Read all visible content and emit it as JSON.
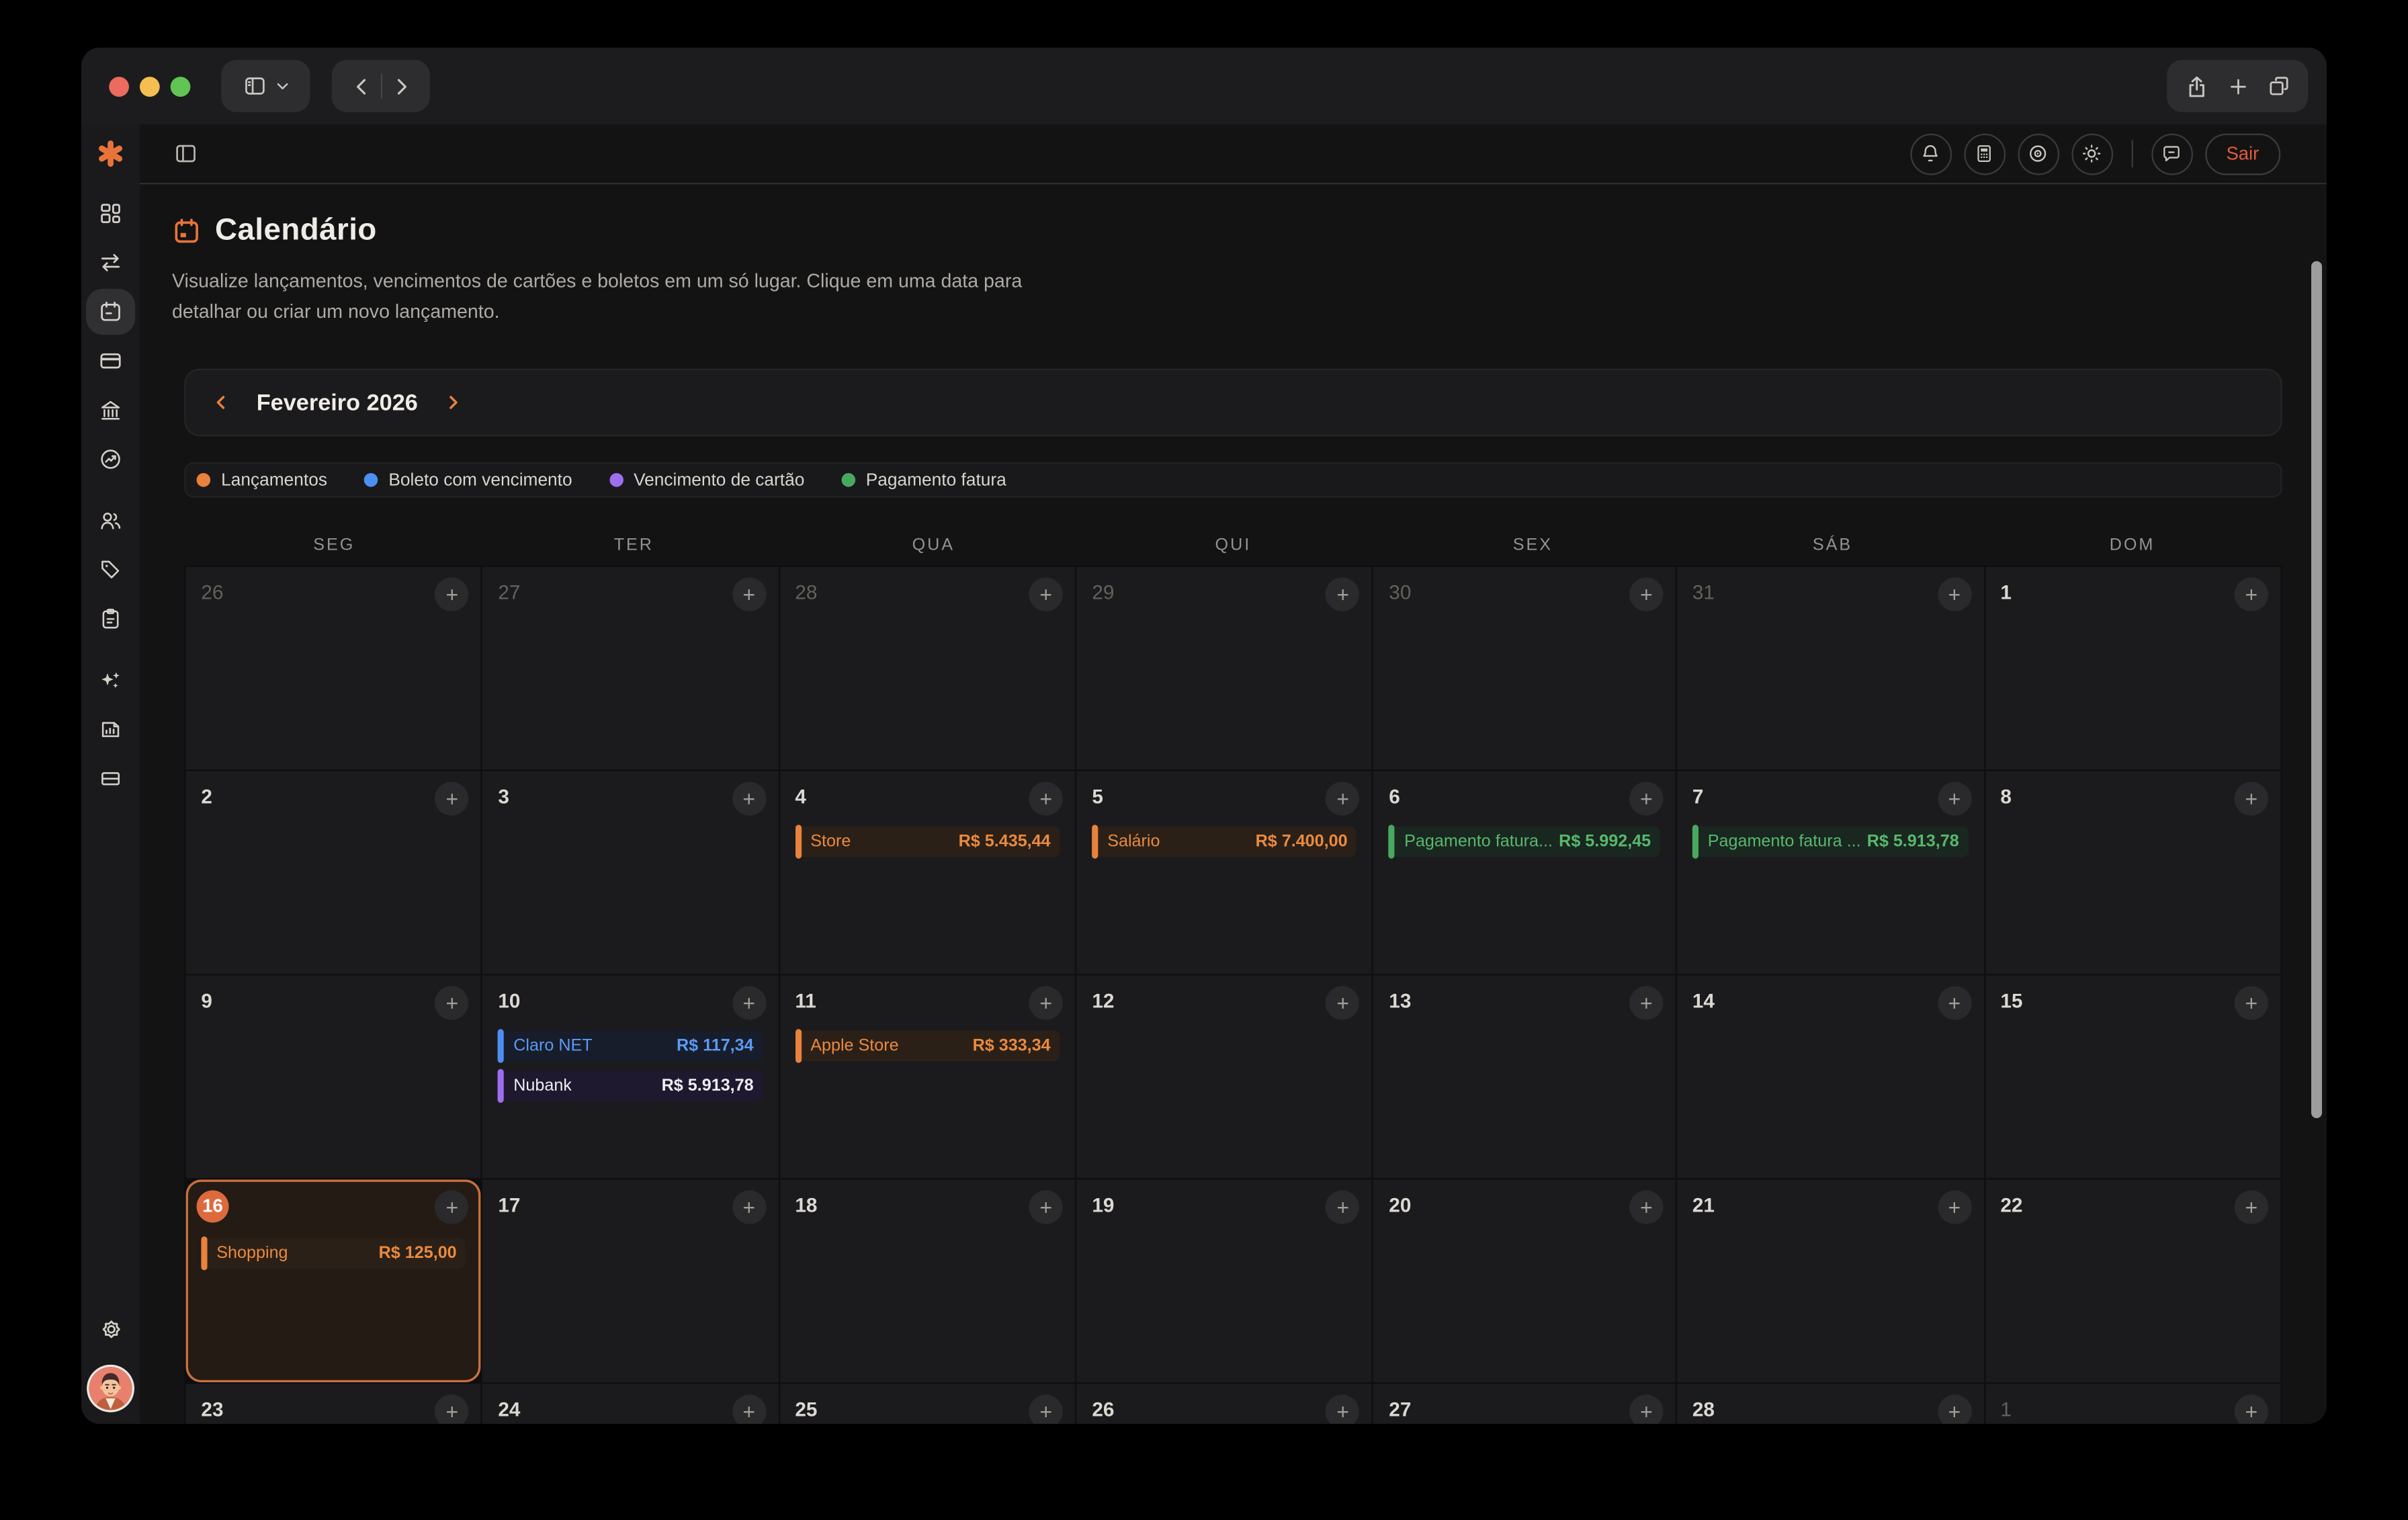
{
  "browser_toolbar": {
    "traffic_lights": [
      "close",
      "minimize",
      "zoom"
    ],
    "icons": [
      "sidebar-toggle-icon",
      "chevron-down-icon",
      "back-icon",
      "forward-icon",
      "share-icon",
      "new-tab-icon",
      "tabs-icon"
    ]
  },
  "sidebar": {
    "logo_icon": "asterisk-logo",
    "items": [
      "dashboard-icon",
      "transfers-icon",
      "calendar-icon",
      "credit-card-icon",
      "bank-icon",
      "trending-icon",
      "users-icon",
      "tag-icon",
      "clipboard-icon",
      "sparkles-icon",
      "report-icon",
      "panels-icon"
    ],
    "active_item": "calendar-icon",
    "bottom": [
      "gear-icon",
      "avatar"
    ]
  },
  "app_topbar": {
    "left_icon": "panel-toggle-icon",
    "icons": [
      "bell-icon",
      "calculator-icon",
      "eye-icon",
      "sun-icon",
      "chat-icon"
    ],
    "logout_label": "Sair"
  },
  "page_header": {
    "title": "Calendário",
    "title_icon": "calendar-icon",
    "subtitle_line1": "Visualize lançamentos, vencimentos de cartões e boletos em um só lugar. Clique em uma data para",
    "subtitle_line2": "detalhar ou criar um novo lançamento."
  },
  "month_nav": {
    "label": "Fevereiro 2026"
  },
  "legend": {
    "items": [
      {
        "label": "Lançamentos",
        "color": "#e8823c"
      },
      {
        "label": "Boleto com vencimento",
        "color": "#4c8ff0"
      },
      {
        "label": "Vencimento de cartão",
        "color": "#9e6ef0"
      },
      {
        "label": "Pagamento fatura",
        "color": "#49a85f"
      }
    ]
  },
  "calendar": {
    "weekdays": [
      "SEG",
      "TER",
      "QUA",
      "QUI",
      "SEX",
      "SÁB",
      "DOM"
    ],
    "weeks": [
      [
        {
          "day": "26",
          "muted": true
        },
        {
          "day": "27",
          "muted": true
        },
        {
          "day": "28",
          "muted": true
        },
        {
          "day": "29",
          "muted": true
        },
        {
          "day": "30",
          "muted": true
        },
        {
          "day": "31",
          "muted": true
        },
        {
          "day": "1"
        }
      ],
      [
        {
          "day": "2"
        },
        {
          "day": "3"
        },
        {
          "day": "4",
          "events": [
            {
              "label": "Store",
              "amount": "R$ 5.435,44",
              "type": "lancamento"
            }
          ]
        },
        {
          "day": "5",
          "events": [
            {
              "label": "Salário",
              "amount": "R$ 7.400,00",
              "type": "lancamento"
            }
          ]
        },
        {
          "day": "6",
          "events": [
            {
              "label": "Pagamento fatura...",
              "amount": "R$ 5.992,45",
              "type": "fatura"
            }
          ]
        },
        {
          "day": "7",
          "events": [
            {
              "label": "Pagamento fatura ...",
              "amount": "R$ 5.913,78",
              "type": "fatura"
            }
          ]
        },
        {
          "day": "8"
        }
      ],
      [
        {
          "day": "9"
        },
        {
          "day": "10",
          "events": [
            {
              "label": "Claro NET",
              "amount": "R$ 117,34",
              "type": "boleto"
            },
            {
              "label": "Nubank",
              "amount": "R$ 5.913,78",
              "type": "cartao"
            }
          ]
        },
        {
          "day": "11",
          "events": [
            {
              "label": "Apple Store",
              "amount": "R$ 333,34",
              "type": "lancamento"
            }
          ]
        },
        {
          "day": "12"
        },
        {
          "day": "13"
        },
        {
          "day": "14"
        },
        {
          "day": "15"
        }
      ],
      [
        {
          "day": "16",
          "today": true,
          "events": [
            {
              "label": "Shopping",
              "amount": "R$ 125,00",
              "type": "lancamento"
            }
          ]
        },
        {
          "day": "17"
        },
        {
          "day": "18"
        },
        {
          "day": "19"
        },
        {
          "day": "20"
        },
        {
          "day": "21"
        },
        {
          "day": "22"
        }
      ],
      [
        {
          "day": "23"
        },
        {
          "day": "24"
        },
        {
          "day": "25"
        },
        {
          "day": "26"
        },
        {
          "day": "27"
        },
        {
          "day": "28"
        },
        {
          "day": "1",
          "muted": true
        }
      ]
    ]
  },
  "colors": {
    "accent_orange": "#e8823c",
    "boleto_blue": "#4c8ff0",
    "cartao_purple": "#9e6ef0",
    "fatura_green": "#49a85f",
    "logout_red": "#e4593f",
    "today_border": "#c86f3e"
  }
}
